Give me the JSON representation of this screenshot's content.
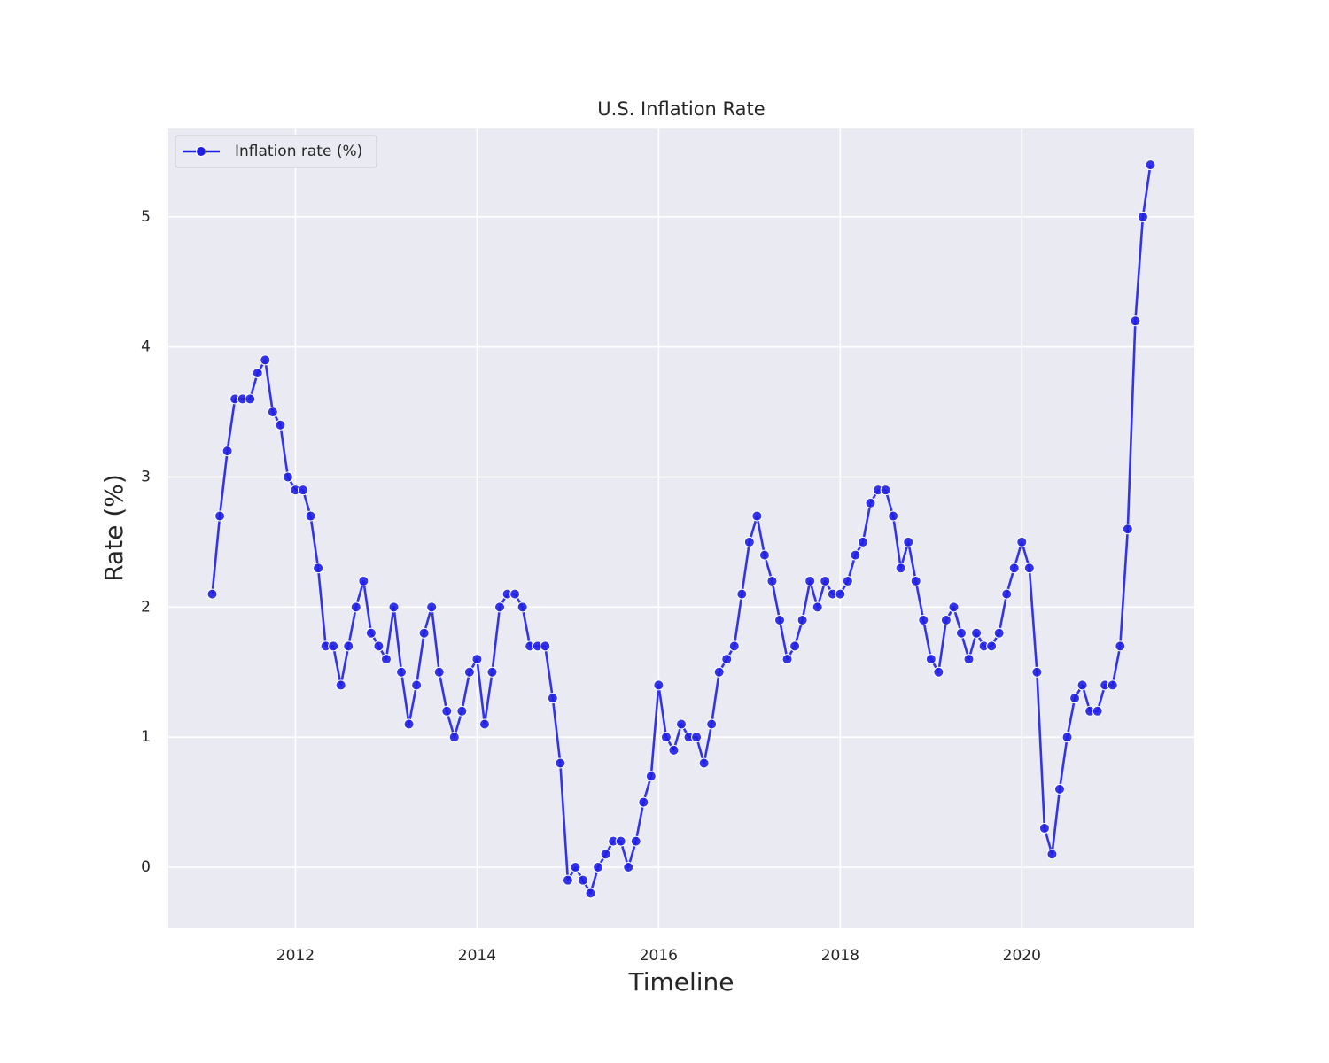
{
  "chart_data": {
    "type": "line",
    "title": "U.S. Inflation Rate",
    "xlabel": "Timeline",
    "ylabel": "Rate (%)",
    "x": [
      "2011-02",
      "2011-03",
      "2011-04",
      "2011-05",
      "2011-06",
      "2011-07",
      "2011-08",
      "2011-09",
      "2011-10",
      "2011-11",
      "2011-12",
      "2012-01",
      "2012-02",
      "2012-03",
      "2012-04",
      "2012-05",
      "2012-06",
      "2012-07",
      "2012-08",
      "2012-09",
      "2012-10",
      "2012-11",
      "2012-12",
      "2013-01",
      "2013-02",
      "2013-03",
      "2013-04",
      "2013-05",
      "2013-06",
      "2013-07",
      "2013-08",
      "2013-09",
      "2013-10",
      "2013-11",
      "2013-12",
      "2014-01",
      "2014-02",
      "2014-03",
      "2014-04",
      "2014-05",
      "2014-06",
      "2014-07",
      "2014-08",
      "2014-09",
      "2014-10",
      "2014-11",
      "2014-12",
      "2015-01",
      "2015-02",
      "2015-03",
      "2015-04",
      "2015-05",
      "2015-06",
      "2015-07",
      "2015-08",
      "2015-09",
      "2015-10",
      "2015-11",
      "2015-12",
      "2016-01",
      "2016-02",
      "2016-03",
      "2016-04",
      "2016-05",
      "2016-06",
      "2016-07",
      "2016-08",
      "2016-09",
      "2016-10",
      "2016-11",
      "2016-12",
      "2017-01",
      "2017-02",
      "2017-03",
      "2017-04",
      "2017-05",
      "2017-06",
      "2017-07",
      "2017-08",
      "2017-09",
      "2017-10",
      "2017-11",
      "2017-12",
      "2018-01",
      "2018-02",
      "2018-03",
      "2018-04",
      "2018-05",
      "2018-06",
      "2018-07",
      "2018-08",
      "2018-09",
      "2018-10",
      "2018-11",
      "2018-12",
      "2019-01",
      "2019-02",
      "2019-03",
      "2019-04",
      "2019-05",
      "2019-06",
      "2019-07",
      "2019-08",
      "2019-09",
      "2019-10",
      "2019-11",
      "2019-12",
      "2020-01",
      "2020-02",
      "2020-03",
      "2020-04",
      "2020-05",
      "2020-06",
      "2020-07",
      "2020-08",
      "2020-09",
      "2020-10",
      "2020-11",
      "2020-12",
      "2021-01",
      "2021-02",
      "2021-03",
      "2021-04",
      "2021-05",
      "2021-06"
    ],
    "series": [
      {
        "name": "Inflation rate (%)",
        "color": "#1f1fe6",
        "values": [
          2.1,
          2.7,
          3.2,
          3.6,
          3.6,
          3.6,
          3.8,
          3.9,
          3.5,
          3.4,
          3.0,
          2.9,
          2.9,
          2.7,
          2.3,
          1.7,
          1.7,
          1.4,
          1.7,
          2.0,
          2.2,
          1.8,
          1.7,
          1.6,
          2.0,
          1.5,
          1.1,
          1.4,
          1.8,
          2.0,
          1.5,
          1.2,
          1.0,
          1.2,
          1.5,
          1.6,
          1.1,
          1.5,
          2.0,
          2.1,
          2.1,
          2.0,
          1.7,
          1.7,
          1.7,
          1.3,
          0.8,
          -0.1,
          0.0,
          -0.1,
          -0.2,
          0.0,
          0.1,
          0.2,
          0.2,
          0.0,
          0.2,
          0.5,
          0.7,
          1.4,
          1.0,
          0.9,
          1.1,
          1.0,
          1.0,
          0.8,
          1.1,
          1.5,
          1.6,
          1.7,
          2.1,
          2.5,
          2.7,
          2.4,
          2.2,
          1.9,
          1.6,
          1.7,
          1.9,
          2.2,
          2.0,
          2.2,
          2.1,
          2.1,
          2.2,
          2.4,
          2.5,
          2.8,
          2.9,
          2.9,
          2.7,
          2.3,
          2.5,
          2.2,
          1.9,
          1.6,
          1.5,
          1.9,
          2.0,
          1.8,
          1.6,
          1.8,
          1.7,
          1.7,
          1.8,
          2.1,
          2.3,
          2.5,
          2.3,
          1.5,
          0.3,
          0.1,
          0.6,
          1.0,
          1.3,
          1.4,
          1.2,
          1.2,
          1.4,
          1.4,
          1.7,
          2.6,
          4.2,
          5.0,
          5.4
        ]
      }
    ],
    "xlim": [
      2010.6,
      2021.9
    ],
    "xticks": [
      2012,
      2014,
      2016,
      2018,
      2020
    ],
    "ylim": [
      -0.47,
      5.68
    ],
    "yticks": [
      0,
      1,
      2,
      3,
      4,
      5
    ],
    "grid": true,
    "legend": "upper left"
  }
}
